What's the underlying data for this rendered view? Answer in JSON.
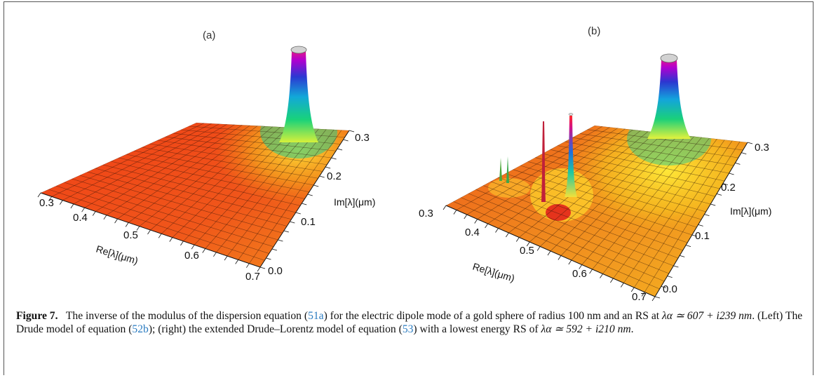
{
  "figure": {
    "panels": [
      {
        "label": "(a)",
        "re_axis": {
          "title": "Re[λ](μm)",
          "ticks": [
            "0.3",
            "0.4",
            "0.5",
            "0.6",
            "0.7"
          ]
        },
        "im_axis": {
          "title": "Im[λ](μm)",
          "ticks": [
            "0.0",
            "0.1",
            "0.2",
            "0.3"
          ]
        },
        "peaks": [
          {
            "re": 0.607,
            "im": 0.239
          }
        ]
      },
      {
        "label": "(b)",
        "re_axis": {
          "title": "Re[λ](μm)",
          "ticks": [
            "0.3",
            "0.4",
            "0.5",
            "0.6",
            "0.7"
          ]
        },
        "im_axis": {
          "title": "Im[λ](μm)",
          "ticks": [
            "0.0",
            "0.1",
            "0.2",
            "0.3"
          ]
        },
        "peaks": [
          {
            "re": 0.592,
            "im": 0.21
          }
        ]
      }
    ],
    "colors": {
      "low": "#e8351a",
      "mid": "#f5d20e",
      "high": "#b000d0",
      "cap": "#cfcfcf"
    }
  },
  "caption": {
    "label": "Figure 7.",
    "part1": "The inverse of the modulus of the dispersion equation (",
    "ref1": "51a",
    "part2": ") for the electric dipole mode of a gold sphere of radius 100 nm and an RS at ",
    "math1": "λα ≃ 607 + i239 nm",
    "part3": ". (Left) The Drude model of equation (",
    "ref2": "52b",
    "part4": "); (right) the extended Drude–Lorentz model of equation (",
    "ref3": "53",
    "part5": ") with a lowest energy RS of ",
    "math2": "λα ≃ 592 + i210 nm",
    "part6": "."
  }
}
